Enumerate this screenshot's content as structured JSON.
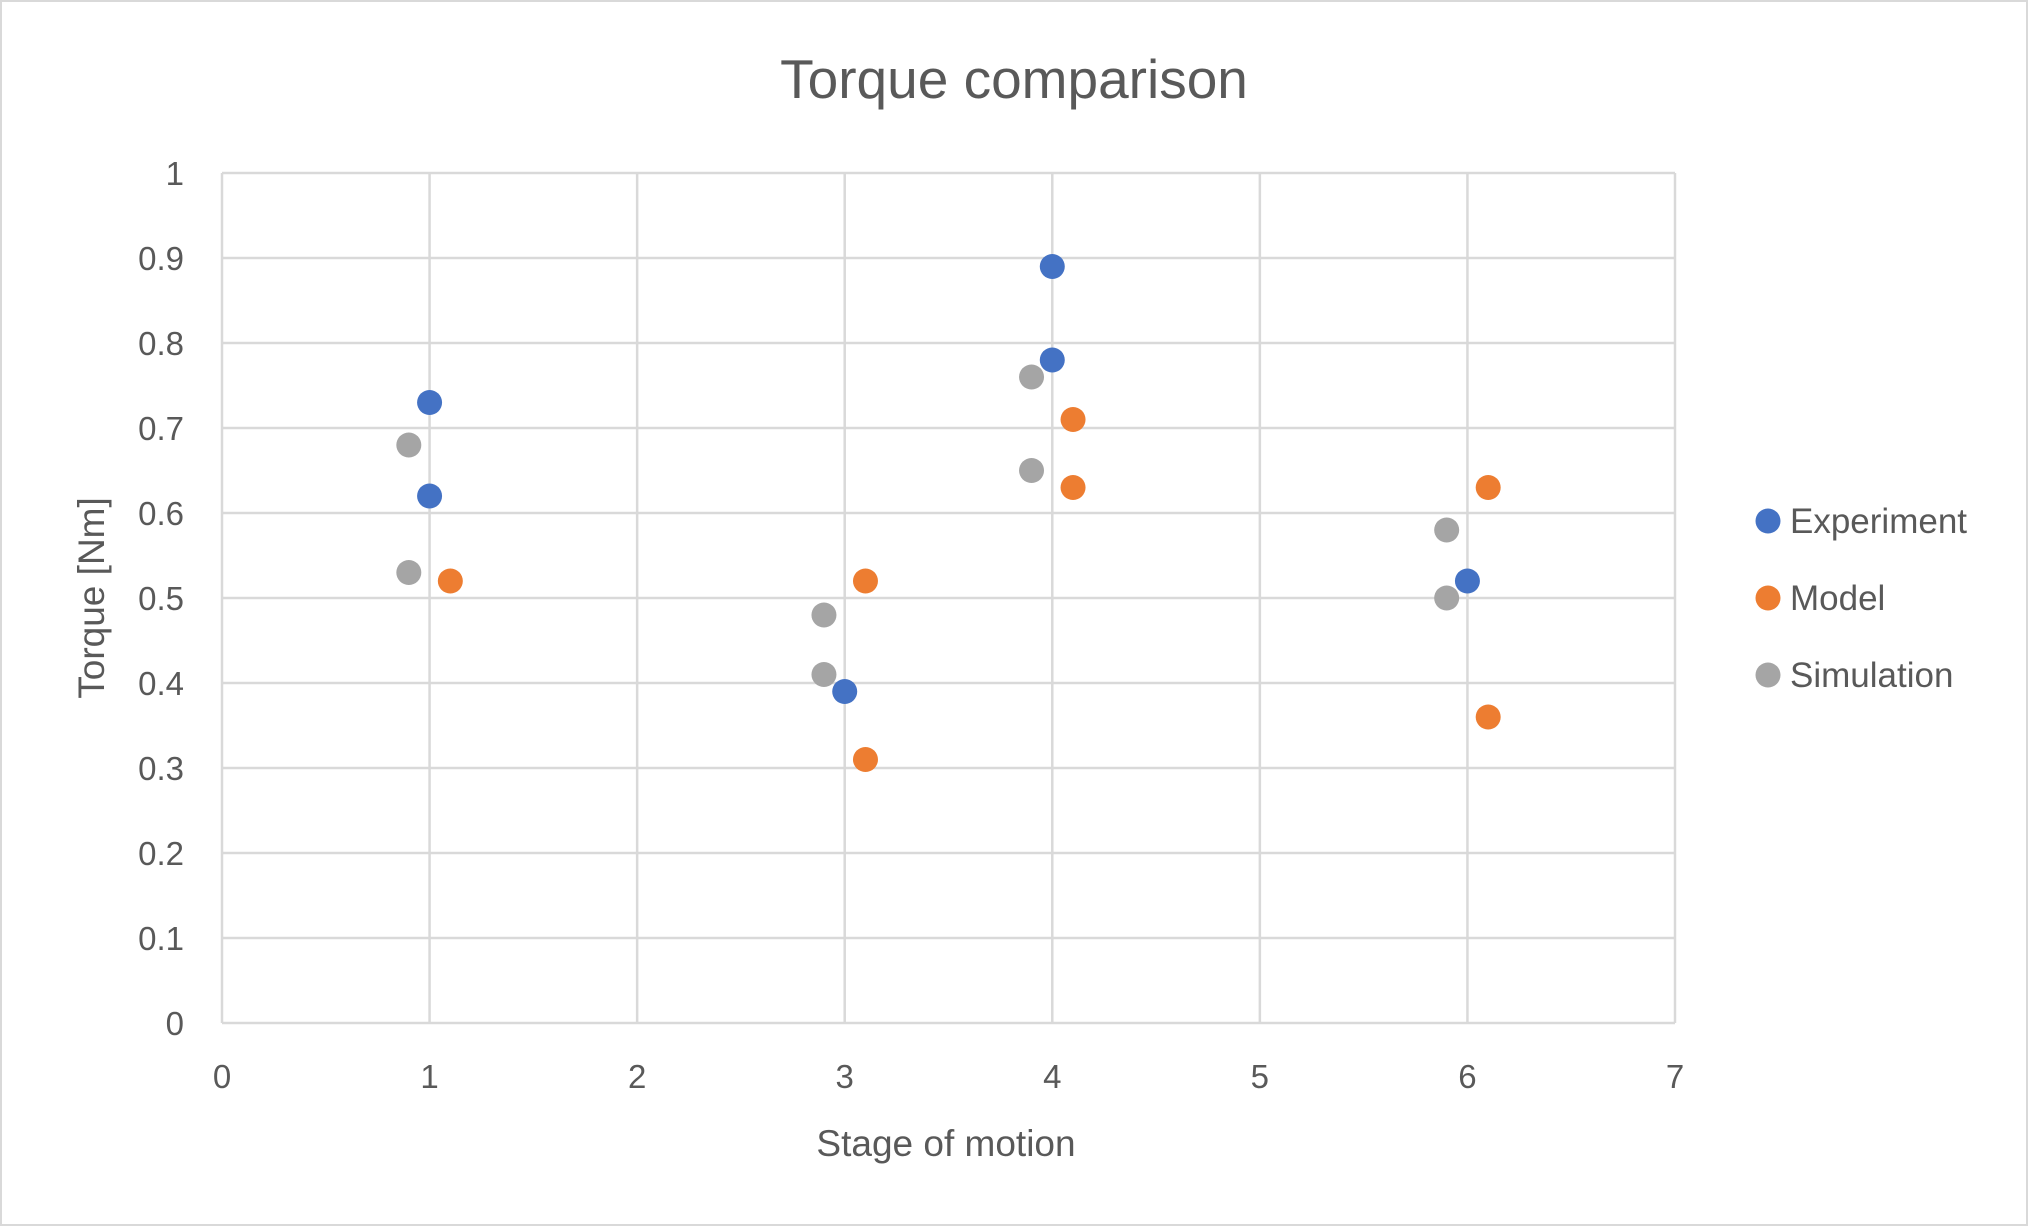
{
  "chart_data": {
    "type": "scatter",
    "title": "Torque comparison",
    "xlabel": "Stage of motion",
    "ylabel": "Torque [Nm]",
    "xlim": [
      0,
      7
    ],
    "ylim": [
      0,
      1
    ],
    "xticks": [
      "0",
      "1",
      "2",
      "3",
      "4",
      "5",
      "6",
      "7"
    ],
    "yticks": [
      "0",
      "0.1",
      "0.2",
      "0.3",
      "0.4",
      "0.5",
      "0.6",
      "0.7",
      "0.8",
      "0.9",
      "1"
    ],
    "grid": true,
    "legend_position": "right",
    "series": [
      {
        "name": "Experiment",
        "color": "#4472C4",
        "points": [
          {
            "x": 1,
            "y": 0.73
          },
          {
            "x": 1,
            "y": 0.62
          },
          {
            "x": 3,
            "y": 0.39
          },
          {
            "x": 4,
            "y": 0.89
          },
          {
            "x": 4,
            "y": 0.78
          },
          {
            "x": 6,
            "y": 0.52
          }
        ]
      },
      {
        "name": "Model",
        "color": "#ED7D31",
        "points": [
          {
            "x": 1.1,
            "y": 0.52
          },
          {
            "x": 3.1,
            "y": 0.52
          },
          {
            "x": 3.1,
            "y": 0.31
          },
          {
            "x": 4.1,
            "y": 0.71
          },
          {
            "x": 4.1,
            "y": 0.63
          },
          {
            "x": 6.1,
            "y": 0.63
          },
          {
            "x": 6.1,
            "y": 0.36
          }
        ]
      },
      {
        "name": "Simulation",
        "color": "#A5A5A5",
        "points": [
          {
            "x": 0.9,
            "y": 0.68
          },
          {
            "x": 0.9,
            "y": 0.53
          },
          {
            "x": 2.9,
            "y": 0.48
          },
          {
            "x": 2.9,
            "y": 0.41
          },
          {
            "x": 3.9,
            "y": 0.76
          },
          {
            "x": 3.9,
            "y": 0.65
          },
          {
            "x": 5.9,
            "y": 0.58
          },
          {
            "x": 5.9,
            "y": 0.5
          }
        ]
      }
    ]
  }
}
